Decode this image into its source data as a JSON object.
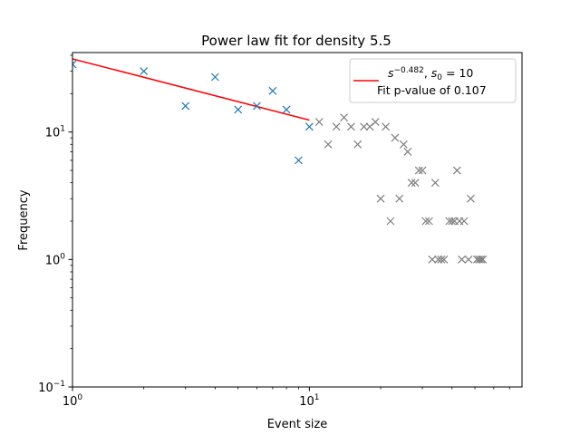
{
  "chart_data": {
    "type": "scatter",
    "title": "Power law fit for density 5.5",
    "xlabel": "Event size",
    "ylabel": "Frequency",
    "xscale": "log",
    "yscale": "log",
    "xlim": [
      1,
      79
    ],
    "ylim": [
      0.1,
      42
    ],
    "grid": false,
    "legend_position": "top-right",
    "x_tick_labels": [
      {
        "value": 1,
        "base": "10",
        "exp": "0"
      },
      {
        "value": 10,
        "base": "10",
        "exp": "1"
      }
    ],
    "y_tick_labels": [
      {
        "value": 0.1,
        "base": "10",
        "exp": "−1"
      },
      {
        "value": 1,
        "base": "10",
        "exp": "0"
      },
      {
        "value": 10,
        "base": "10",
        "exp": "1"
      }
    ],
    "series": [
      {
        "marker": "x",
        "color": "#1f77b4",
        "points": [
          [
            1,
            34
          ],
          [
            2,
            30
          ],
          [
            3,
            16
          ],
          [
            4,
            27
          ],
          [
            5,
            15
          ],
          [
            6,
            16
          ],
          [
            7,
            21
          ],
          [
            8,
            15
          ],
          [
            9,
            6
          ],
          [
            10,
            11
          ]
        ]
      },
      {
        "marker": "x",
        "color": "#7f7f7f",
        "points": [
          [
            11,
            12
          ],
          [
            12,
            8
          ],
          [
            13,
            11
          ],
          [
            14,
            13
          ],
          [
            15,
            11
          ],
          [
            16,
            8
          ],
          [
            17,
            11
          ],
          [
            18,
            11
          ],
          [
            19,
            12
          ],
          [
            20,
            3
          ],
          [
            21,
            11
          ],
          [
            22,
            2
          ],
          [
            23,
            9
          ],
          [
            24,
            3
          ],
          [
            25,
            8
          ],
          [
            26,
            7
          ],
          [
            27,
            4
          ],
          [
            28,
            4
          ],
          [
            29,
            5
          ],
          [
            30,
            5
          ],
          [
            31,
            2
          ],
          [
            32,
            2
          ],
          [
            33,
            1
          ],
          [
            34,
            4
          ],
          [
            35,
            1
          ],
          [
            36,
            1
          ],
          [
            37,
            1
          ],
          [
            39,
            2
          ],
          [
            40,
            2
          ],
          [
            41,
            2
          ],
          [
            42,
            5
          ],
          [
            43,
            2
          ],
          [
            44,
            1
          ],
          [
            45,
            2
          ],
          [
            47,
            1
          ],
          [
            48,
            3
          ],
          [
            51,
            1
          ],
          [
            52,
            1
          ],
          [
            53,
            1
          ],
          [
            54,
            1
          ]
        ]
      }
    ],
    "fit_line": {
      "color": "#ff0000",
      "exponent": -0.482,
      "s0": 10,
      "x": [
        1,
        10
      ],
      "y": [
        37.5,
        12.4
      ]
    },
    "legend": {
      "fit_prefix": "s",
      "fit_exponent": "−0.482",
      "fit_sep": ", ",
      "s0_base": "s",
      "s0_sub": "0",
      "s0_value": " = 10",
      "pvalue_text": "Fit p-value of 0.107"
    }
  }
}
